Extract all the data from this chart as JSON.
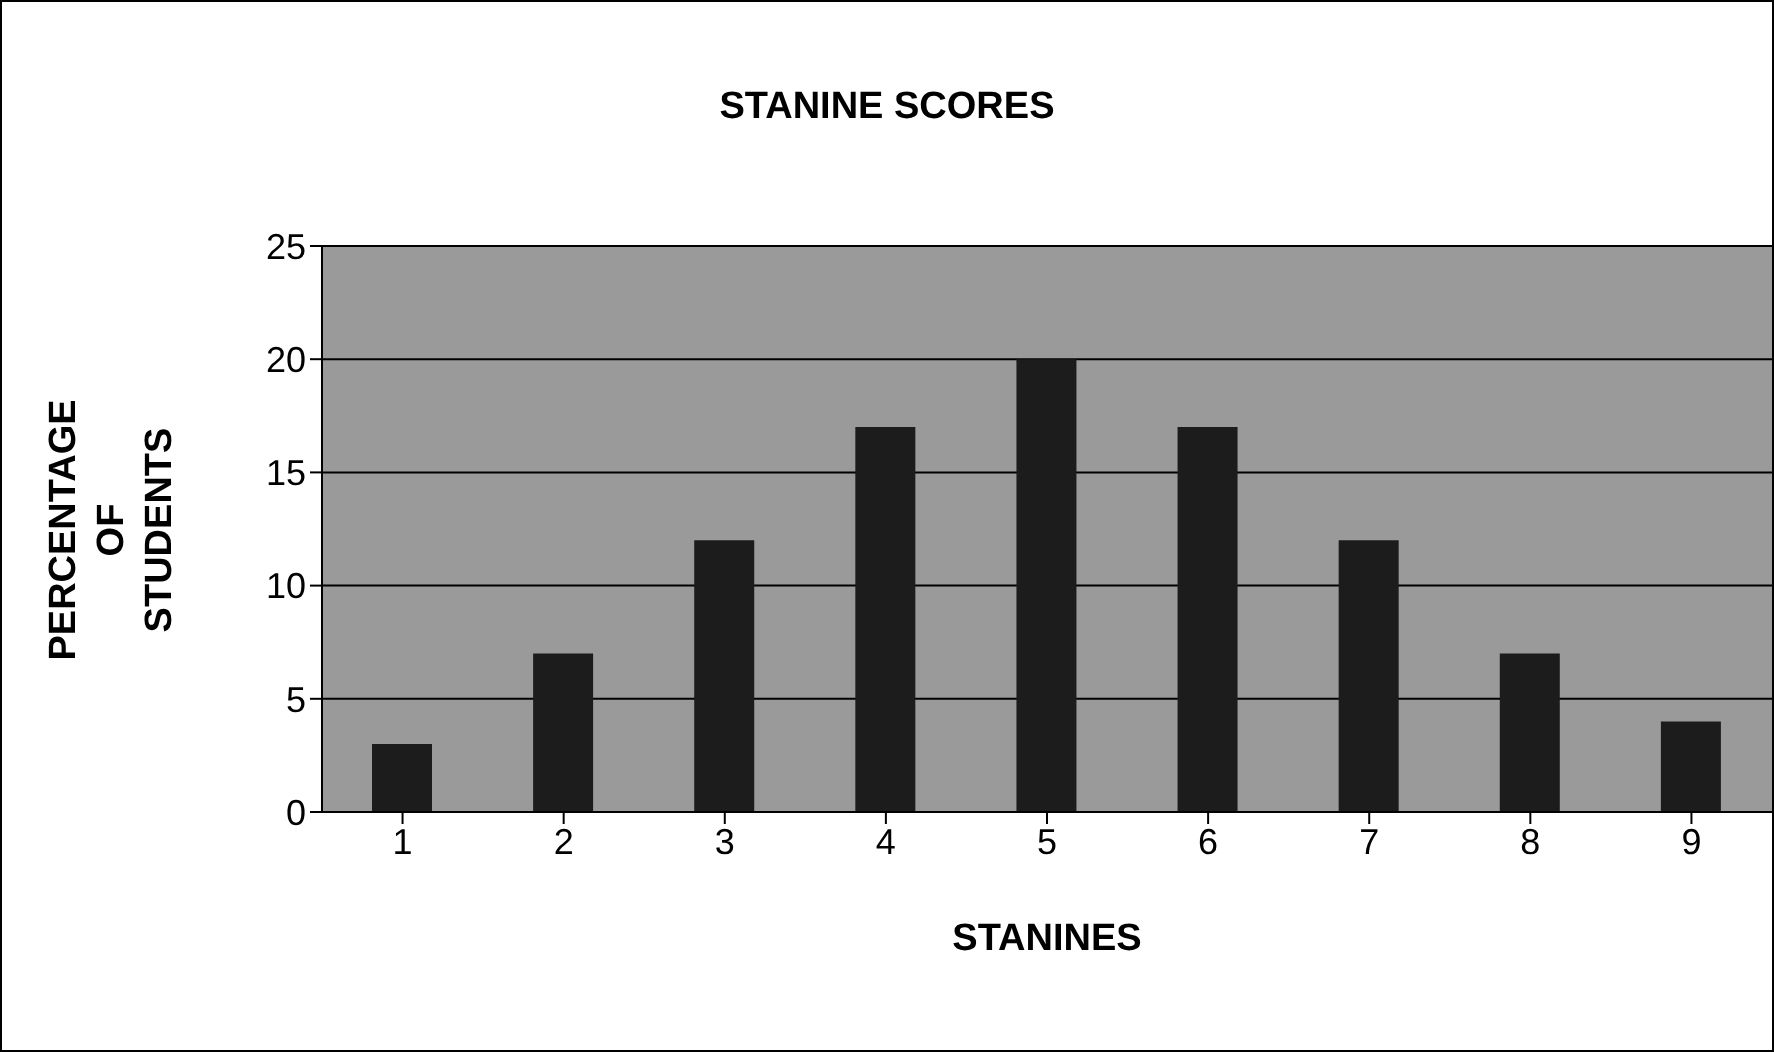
{
  "chart_data": {
    "type": "bar",
    "title": "STANINE SCORES",
    "xlabel": "STANINES",
    "ylabel": "PERCENTAGE OF STUDENTS",
    "categories": [
      "1",
      "2",
      "3",
      "4",
      "5",
      "6",
      "7",
      "8",
      "9"
    ],
    "values": [
      3,
      7,
      12,
      17,
      20,
      17,
      12,
      7,
      4
    ],
    "color": "#1c1c1c",
    "ylim": [
      0,
      25
    ],
    "yticks": [
      0,
      5,
      10,
      15,
      20,
      25
    ],
    "grid": "y"
  }
}
